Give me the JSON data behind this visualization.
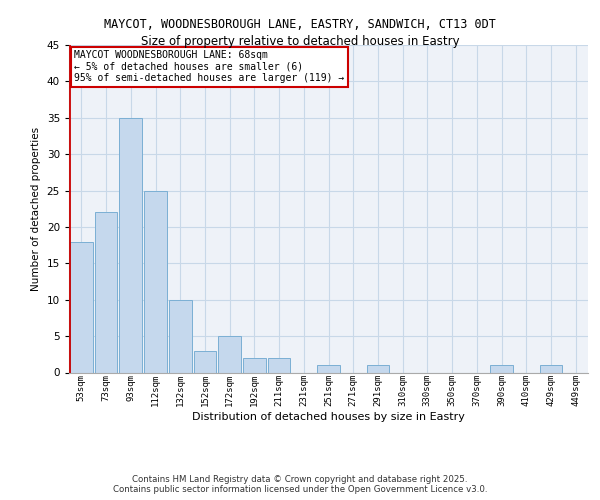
{
  "title1": "MAYCOT, WOODNESBOROUGH LANE, EASTRY, SANDWICH, CT13 0DT",
  "title2": "Size of property relative to detached houses in Eastry",
  "xlabel": "Distribution of detached houses by size in Eastry",
  "ylabel": "Number of detached properties",
  "categories": [
    "53sqm",
    "73sqm",
    "93sqm",
    "112sqm",
    "132sqm",
    "152sqm",
    "172sqm",
    "192sqm",
    "211sqm",
    "231sqm",
    "251sqm",
    "271sqm",
    "291sqm",
    "310sqm",
    "330sqm",
    "350sqm",
    "370sqm",
    "390sqm",
    "410sqm",
    "429sqm",
    "449sqm"
  ],
  "values": [
    18,
    22,
    35,
    25,
    10,
    3,
    5,
    2,
    2,
    0,
    1,
    0,
    1,
    0,
    0,
    0,
    0,
    1,
    0,
    1,
    0
  ],
  "bar_color": "#c5d8ed",
  "bar_edge_color": "#7bafd4",
  "highlight_color": "#cc0000",
  "annotation_title": "MAYCOT WOODNESBOROUGH LANE: 68sqm",
  "annotation_line2": "← 5% of detached houses are smaller (6)",
  "annotation_line3": "95% of semi-detached houses are larger (119) →",
  "annotation_box_color": "#cc0000",
  "grid_color": "#c8d8e8",
  "bg_color": "#eef2f8",
  "ylim": [
    0,
    45
  ],
  "yticks": [
    0,
    5,
    10,
    15,
    20,
    25,
    30,
    35,
    40,
    45
  ],
  "footer": "Contains HM Land Registry data © Crown copyright and database right 2025.\nContains public sector information licensed under the Open Government Licence v3.0."
}
